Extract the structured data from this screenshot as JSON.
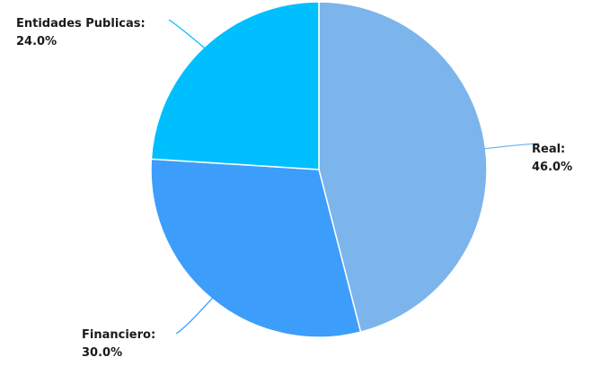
{
  "chart_data": {
    "type": "pie",
    "start_angle_deg": 0,
    "direction": "clockwise",
    "slices": [
      {
        "name": "Real",
        "value": 46.0,
        "label": "Real:",
        "value_label": "46.0%",
        "color": "#7cb5ec"
      },
      {
        "name": "Financiero",
        "value": 30.0,
        "label": "Financiero:",
        "value_label": "30.0%",
        "color": "#3d9dfb"
      },
      {
        "name": "Entidades Publicas",
        "value": 24.0,
        "label": "Entidades Publicas:",
        "value_label": "24.0%",
        "color": "#00bfff"
      }
    ],
    "legend": "none",
    "data_labels": "outside with leader lines"
  }
}
